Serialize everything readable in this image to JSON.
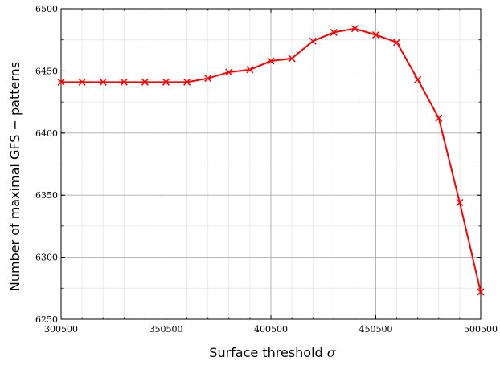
{
  "chart_data": {
    "type": "line",
    "title": "",
    "xlabel": "Surface threshold",
    "xlabel_symbol": "σ",
    "ylabel": "Number of maximal GFS − patterns",
    "xlim": [
      300500,
      500500
    ],
    "ylim": [
      6250,
      6500
    ],
    "xticks": [
      "300500",
      "350500",
      "400500",
      "450500",
      "500500"
    ],
    "yticks": [
      "6250",
      "6300",
      "6350",
      "6400",
      "6450",
      "6500"
    ],
    "x_minor_step": 10000,
    "y_minor_step": 25,
    "grid": true,
    "legend": "none",
    "line_color": "#ff0000",
    "grid_color": "#b0b0b0",
    "minor_grid_color": "#e6e6e6",
    "marker": "x",
    "series": [
      {
        "x": [
          300500,
          310500,
          320500,
          330500,
          340500,
          350500,
          360500,
          370500,
          380500,
          390500,
          400500,
          410500,
          420500,
          430500,
          440500,
          450500,
          460500,
          470500,
          480500,
          490500,
          500500
        ],
        "y": [
          6441,
          6441,
          6441,
          6441,
          6441,
          6441,
          6441,
          6444,
          6449,
          6451,
          6458,
          6460,
          6474,
          6481,
          6484,
          6479,
          6473,
          6443,
          6412,
          6344,
          6272
        ]
      }
    ]
  }
}
